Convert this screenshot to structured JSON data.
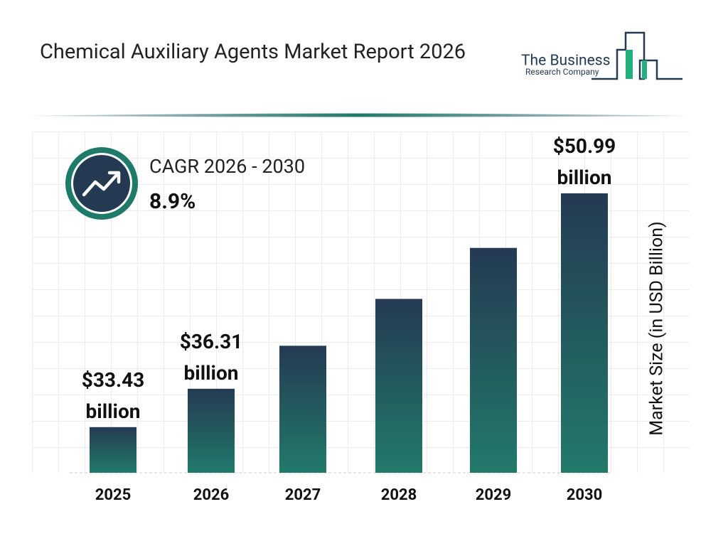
{
  "chart_data": {
    "type": "bar",
    "title": "Chemical Auxiliary Agents Market Report 2026",
    "logo": {
      "line1": "The Business",
      "line2": "Research Company"
    },
    "cagr_label": "CAGR 2026 - 2030",
    "cagr_value": "8.9%",
    "y_label": "Market Size (in USD Billion)",
    "categories": [
      "2025",
      "2026",
      "2027",
      "2028",
      "2029",
      "2030"
    ],
    "values": [
      33.43,
      36.31,
      39.54,
      43.06,
      46.89,
      50.99
    ],
    "value_labels": [
      "$33.43 billion",
      "$36.31 billion",
      null,
      null,
      null,
      "$50.99 billion"
    ],
    "ylim": [
      30,
      52
    ],
    "color_top": "#243a52",
    "color_bottom": "#217a6a"
  }
}
